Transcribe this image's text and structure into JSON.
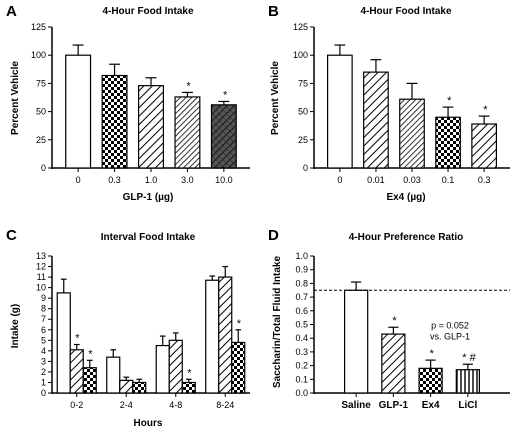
{
  "colors": {
    "bar_fill": "#ffffff",
    "ink": "#000000"
  },
  "chart_data": [
    {
      "panel_label": "A",
      "type": "bar",
      "title": "4-Hour Food Intake",
      "xlabel": "GLP-1 (µg)",
      "ylabel": "Percent Vehicle",
      "ylim": [
        0,
        125
      ],
      "yticks": [
        0,
        25,
        50,
        75,
        100,
        125
      ],
      "categories": [
        "0",
        "0.3",
        "1.0",
        "3.0",
        "10.0"
      ],
      "values": [
        100,
        82,
        73,
        63,
        56
      ],
      "errors": [
        9,
        10,
        7,
        4,
        3
      ],
      "patterns": [
        "none",
        "check",
        "diag",
        "diag-dense",
        "cross"
      ],
      "annotations": [
        "",
        "",
        "",
        "*",
        "*"
      ]
    },
    {
      "panel_label": "B",
      "type": "bar",
      "title": "4-Hour Food Intake",
      "xlabel": "Ex4 (µg)",
      "ylabel": "Percent Vehicle",
      "ylim": [
        0,
        125
      ],
      "yticks": [
        0,
        25,
        50,
        75,
        100,
        125
      ],
      "categories": [
        "0",
        "0.01",
        "0.03",
        "0.1",
        "0.3"
      ],
      "values": [
        100,
        85,
        61,
        45,
        39
      ],
      "errors": [
        9,
        11,
        14,
        9,
        7
      ],
      "patterns": [
        "none",
        "diag",
        "diag-dense",
        "check",
        "diag"
      ],
      "annotations": [
        "",
        "",
        "",
        "*",
        "*"
      ]
    },
    {
      "panel_label": "C",
      "type": "bar",
      "title": "Interval Food Intake",
      "xlabel": "Hours",
      "ylabel": "Intake (g)",
      "ylim": [
        0,
        13
      ],
      "yticks": [
        0,
        1,
        2,
        3,
        4,
        5,
        6,
        7,
        8,
        9,
        10,
        11,
        12,
        13
      ],
      "categories": [
        "0-2",
        "2-4",
        "4-8",
        "8-24"
      ],
      "series": [
        {
          "pattern": "none",
          "values": [
            9.5,
            3.4,
            4.5,
            10.7
          ],
          "errors": [
            1.3,
            0.7,
            0.9,
            0.4
          ]
        },
        {
          "pattern": "diag",
          "values": [
            4.1,
            1.2,
            5.0,
            11.0
          ],
          "errors": [
            0.5,
            0.3,
            0.7,
            1.0
          ]
        },
        {
          "pattern": "check",
          "values": [
            2.4,
            1.0,
            1.0,
            4.8
          ],
          "errors": [
            0.7,
            0.3,
            0.3,
            1.2
          ]
        }
      ],
      "annotations": [
        [
          "",
          "*",
          "*"
        ],
        [
          "",
          "",
          ""
        ],
        [
          "",
          "",
          "*"
        ],
        [
          "",
          "",
          "*"
        ]
      ]
    },
    {
      "panel_label": "D",
      "type": "bar",
      "title": "4-Hour Preference Ratio",
      "xlabel": "",
      "ylabel": "Saccharin/Total Fluid Intake",
      "ylim": [
        0,
        1.0
      ],
      "yticks": [
        "0.0",
        "0.1",
        "0.2",
        "0.3",
        "0.4",
        "0.5",
        "0.6",
        "0.7",
        "0.8",
        "0.9",
        "1.0"
      ],
      "categories": [
        "Saline",
        "GLP-1",
        "Ex4",
        "LiCl"
      ],
      "values": [
        0.75,
        0.43,
        0.18,
        0.17
      ],
      "errors": [
        0.06,
        0.05,
        0.06,
        0.04
      ],
      "patterns": [
        "none",
        "diag",
        "check",
        "vlines"
      ],
      "annotations": [
        "",
        "*",
        "*",
        "* #"
      ],
      "reference_line": 0.75,
      "note": "p = 0.052\nvs. GLP-1"
    }
  ]
}
